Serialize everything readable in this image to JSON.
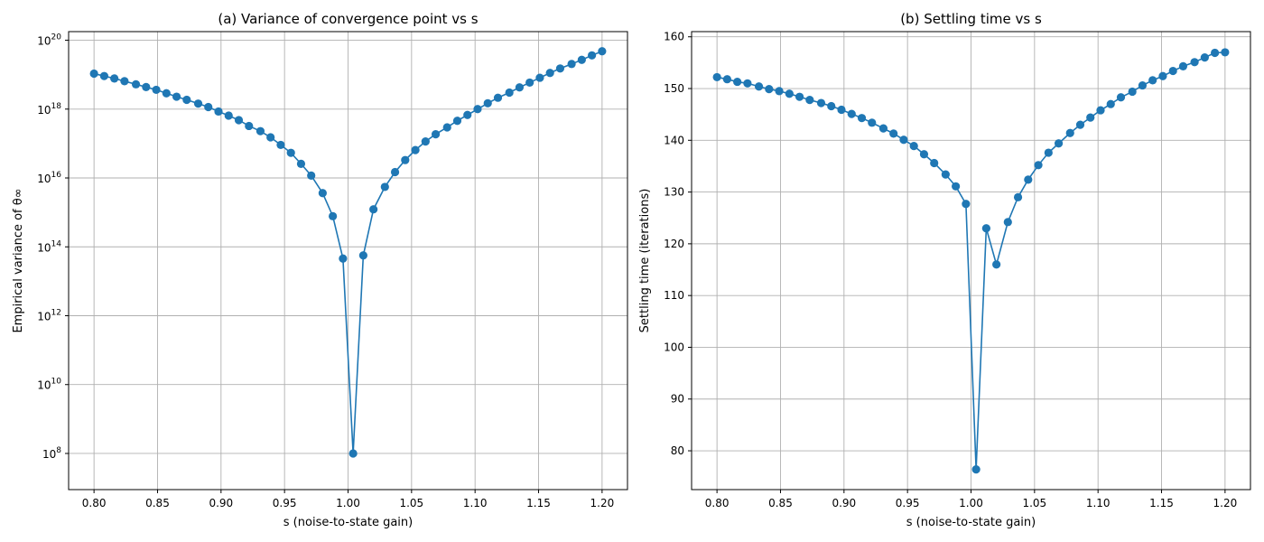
{
  "chart_data": [
    {
      "type": "line",
      "title": "(a) Variance of convergence point vs s",
      "xlabel": "s (noise-to-state gain)",
      "ylabel": "Empirical variance of θ∞",
      "xlim": [
        0.78,
        1.22
      ],
      "ylim_log10": [
        6.95,
        20.25
      ],
      "yscale": "log",
      "grid": true,
      "color": "#1f77b4",
      "xticks": [
        0.8,
        0.85,
        0.9,
        0.95,
        1.0,
        1.05,
        1.1,
        1.15,
        1.2
      ],
      "xtick_labels": [
        "0.80",
        "0.85",
        "0.90",
        "0.95",
        "1.00",
        "1.05",
        "1.10",
        "1.15",
        "1.20"
      ],
      "yticks_log10": [
        8,
        10,
        12,
        14,
        16,
        18,
        20
      ],
      "ytick_base": "10",
      "ytick_exponents": [
        "8",
        "10",
        "12",
        "14",
        "16",
        "18",
        "20"
      ],
      "series": [
        {
          "x": [
            0.8,
            0.808,
            0.816,
            0.824,
            0.833,
            0.841,
            0.849,
            0.857,
            0.865,
            0.873,
            0.882,
            0.89,
            0.898,
            0.906,
            0.914,
            0.922,
            0.931,
            0.939,
            0.947,
            0.955,
            0.963,
            0.971,
            0.98,
            0.988,
            0.996,
            1.004,
            1.012,
            1.02,
            1.029,
            1.037,
            1.045,
            1.053,
            1.061,
            1.069,
            1.078,
            1.086,
            1.094,
            1.102,
            1.11,
            1.118,
            1.127,
            1.135,
            1.143,
            1.151,
            1.159,
            1.167,
            1.176,
            1.184,
            1.192,
            1.2
          ],
          "y_log10": [
            19.03,
            18.96,
            18.89,
            18.81,
            18.72,
            18.64,
            18.56,
            18.46,
            18.36,
            18.27,
            18.16,
            18.06,
            17.93,
            17.81,
            17.68,
            17.51,
            17.36,
            17.18,
            16.96,
            16.73,
            16.41,
            16.07,
            15.56,
            14.89,
            13.66,
            8.0,
            13.75,
            15.09,
            15.74,
            16.17,
            16.52,
            16.81,
            17.06,
            17.27,
            17.47,
            17.66,
            17.83,
            18.0,
            18.17,
            18.33,
            18.48,
            18.63,
            18.77,
            18.91,
            19.05,
            19.18,
            19.31,
            19.43,
            19.56,
            19.68
          ]
        }
      ]
    },
    {
      "type": "line",
      "title": "(b) Settling time vs s",
      "xlabel": "s (noise-to-state gain)",
      "ylabel": "Settling time (iterations)",
      "xlim": [
        0.78,
        1.22
      ],
      "ylim": [
        72.5,
        161
      ],
      "grid": true,
      "color": "#1f77b4",
      "xticks": [
        0.8,
        0.85,
        0.9,
        0.95,
        1.0,
        1.05,
        1.1,
        1.15,
        1.2
      ],
      "xtick_labels": [
        "0.80",
        "0.85",
        "0.90",
        "0.95",
        "1.00",
        "1.05",
        "1.10",
        "1.15",
        "1.20"
      ],
      "yticks": [
        80,
        90,
        100,
        110,
        120,
        130,
        140,
        150,
        160
      ],
      "ytick_labels": [
        "80",
        "90",
        "100",
        "110",
        "120",
        "130",
        "140",
        "150",
        "160"
      ],
      "series": [
        {
          "x": [
            0.8,
            0.808,
            0.816,
            0.824,
            0.833,
            0.841,
            0.849,
            0.857,
            0.865,
            0.873,
            0.882,
            0.89,
            0.898,
            0.906,
            0.914,
            0.922,
            0.931,
            0.939,
            0.947,
            0.955,
            0.963,
            0.971,
            0.98,
            0.988,
            0.996,
            1.004,
            1.012,
            1.02,
            1.029,
            1.037,
            1.045,
            1.053,
            1.061,
            1.069,
            1.078,
            1.086,
            1.094,
            1.102,
            1.11,
            1.118,
            1.127,
            1.135,
            1.143,
            1.151,
            1.159,
            1.167,
            1.176,
            1.184,
            1.192,
            1.2
          ],
          "y": [
            152.2,
            151.8,
            151.3,
            151.0,
            150.4,
            149.9,
            149.5,
            149.0,
            148.4,
            147.8,
            147.2,
            146.6,
            145.9,
            145.1,
            144.3,
            143.4,
            142.3,
            141.3,
            140.1,
            138.9,
            137.3,
            135.6,
            133.4,
            131.1,
            127.7,
            76.4,
            123.0,
            116.0,
            124.2,
            129.0,
            132.4,
            135.2,
            137.6,
            139.4,
            141.4,
            143.0,
            144.4,
            145.8,
            147.0,
            148.3,
            149.4,
            150.6,
            151.6,
            152.4,
            153.4,
            154.3,
            155.1,
            156.0,
            156.9,
            157.0
          ]
        }
      ]
    }
  ]
}
